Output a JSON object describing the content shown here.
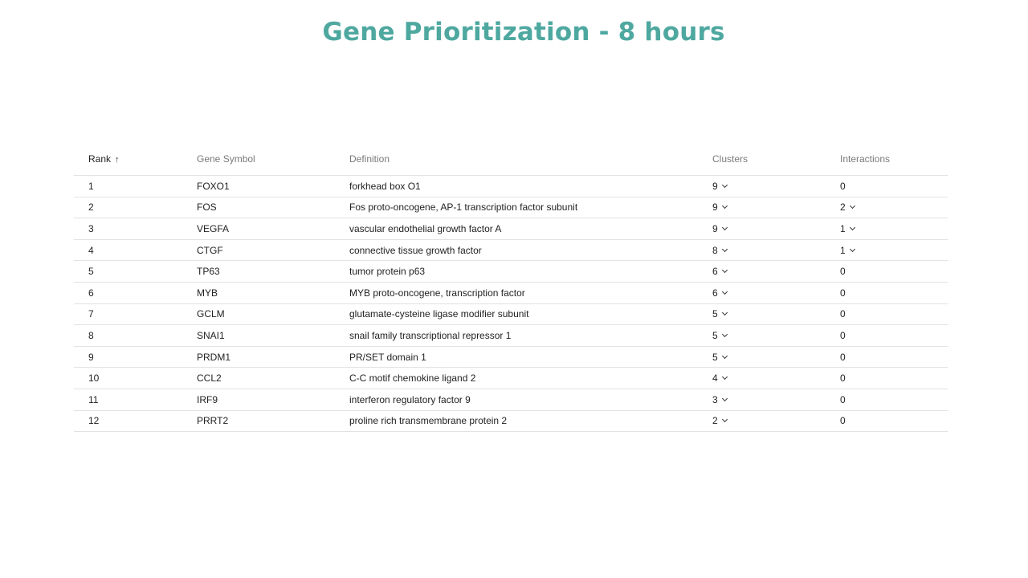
{
  "title": "Gene Prioritization - 8 hours",
  "table": {
    "headers": {
      "rank": "Rank",
      "gene_symbol": "Gene Symbol",
      "definition": "Definition",
      "clusters": "Clusters",
      "interactions": "Interactions"
    },
    "sort_icon": "arrow-up-icon",
    "rows": [
      {
        "rank": "1",
        "gene": "FOXO1",
        "definition": "forkhead box O1",
        "clusters": "9",
        "interactions": "0"
      },
      {
        "rank": "2",
        "gene": "FOS",
        "definition": "Fos proto-oncogene, AP-1 transcription factor subunit",
        "clusters": "9",
        "interactions": "2"
      },
      {
        "rank": "3",
        "gene": "VEGFA",
        "definition": "vascular endothelial growth factor A",
        "clusters": "9",
        "interactions": "1"
      },
      {
        "rank": "4",
        "gene": "CTGF",
        "definition": "connective tissue growth factor",
        "clusters": "8",
        "interactions": "1"
      },
      {
        "rank": "5",
        "gene": "TP63",
        "definition": "tumor protein p63",
        "clusters": "6",
        "interactions": "0"
      },
      {
        "rank": "6",
        "gene": "MYB",
        "definition": "MYB proto-oncogene, transcription factor",
        "clusters": "6",
        "interactions": "0"
      },
      {
        "rank": "7",
        "gene": "GCLM",
        "definition": "glutamate-cysteine ligase modifier subunit",
        "clusters": "5",
        "interactions": "0"
      },
      {
        "rank": "8",
        "gene": "SNAI1",
        "definition": "snail family transcriptional repressor 1",
        "clusters": "5",
        "interactions": "0"
      },
      {
        "rank": "9",
        "gene": "PRDM1",
        "definition": "PR/SET domain 1",
        "clusters": "5",
        "interactions": "0"
      },
      {
        "rank": "10",
        "gene": "CCL2",
        "definition": "C-C motif chemokine ligand 2",
        "clusters": "4",
        "interactions": "0"
      },
      {
        "rank": "11",
        "gene": "IRF9",
        "definition": "interferon regulatory factor 9",
        "clusters": "3",
        "interactions": "0"
      },
      {
        "rank": "12",
        "gene": "PRRT2",
        "definition": "proline rich transmembrane protein 2",
        "clusters": "2",
        "interactions": "0"
      }
    ]
  }
}
